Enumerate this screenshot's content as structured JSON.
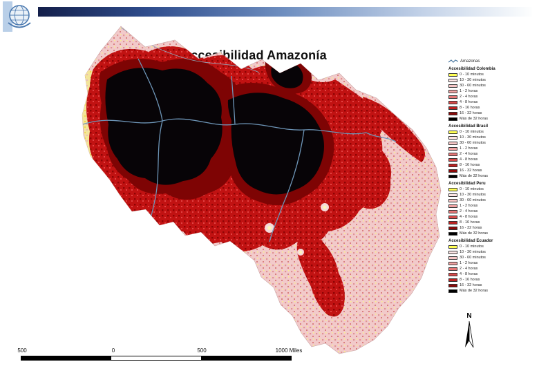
{
  "slide": {
    "title": "Accesibilidad Amazonía"
  },
  "legend": {
    "river_label": "Amazonas",
    "sections": [
      {
        "title": "Accesibilidad Colombia"
      },
      {
        "title": "Accesibilidad Brasil"
      },
      {
        "title": "Accesibilidad Peru"
      },
      {
        "title": "Accesibilidad Ecuador"
      }
    ],
    "classes": [
      {
        "label": "0 - 10 minutos",
        "color": "#FFFF54"
      },
      {
        "label": "10 - 30 minutos",
        "color": "#FBE4E4"
      },
      {
        "label": "30 - 60 minutos",
        "color": "#F6C6C6"
      },
      {
        "label": "1 - 2 horas",
        "color": "#F0A3A3"
      },
      {
        "label": "2 - 4 horas",
        "color": "#E67878"
      },
      {
        "label": "4 - 8 horas",
        "color": "#D84A4A"
      },
      {
        "label": "8 - 16 horas",
        "color": "#BE2222"
      },
      {
        "label": "16 - 32 horas",
        "color": "#8C0A0A"
      },
      {
        "label": "Más de 32 horas",
        "color": "#000000"
      }
    ]
  },
  "map": {
    "colors": {
      "accessible_speckle": "#F2CACA",
      "yellow_zone": "#F3E59A",
      "red_zone": "#C11212",
      "dark_red_zone": "#7E0404",
      "inaccessible": "#000000",
      "river": "#6E96B8"
    }
  },
  "north_label": "N",
  "scalebar": {
    "labels": [
      "500",
      "0",
      "500",
      "1000 Miles"
    ]
  }
}
